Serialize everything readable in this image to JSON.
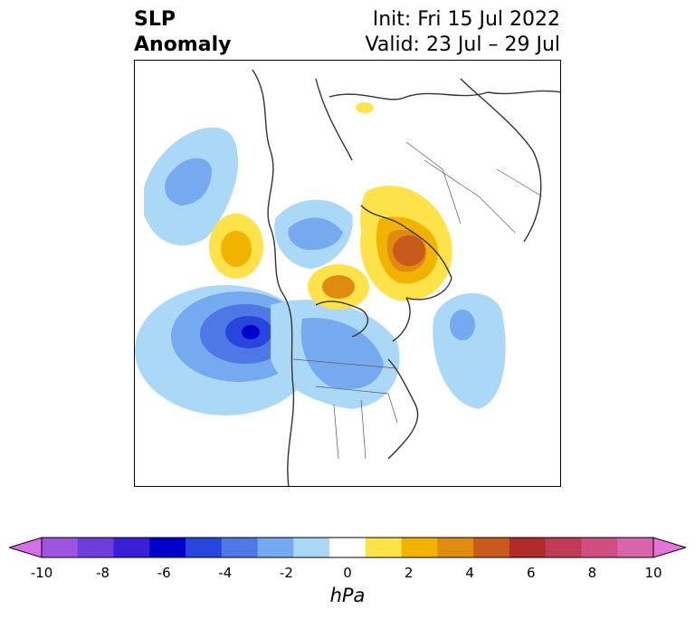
{
  "header": {
    "title_line1": "SLP",
    "title_line2": "Anomaly",
    "init_text": "Init: Fri 15 Jul 2022",
    "valid_text": "Valid: 23 Jul – 29 Jul"
  },
  "colorbar": {
    "units": "hPa",
    "tick_labels": [
      "-10",
      "-8",
      "-6",
      "-4",
      "-2",
      "0",
      "2",
      "4",
      "6",
      "8",
      "10"
    ],
    "colors": [
      "#d66ee6",
      "#9d55e0",
      "#6e3fd8",
      "#3a1fd6",
      "#0000cc",
      "#2845dd",
      "#4d78e6",
      "#75aaf0",
      "#acd8f8",
      "#ffffff",
      "#fde24a",
      "#f2b200",
      "#de8b10",
      "#c85a1c",
      "#b12b2b",
      "#c23b56",
      "#cf5080",
      "#d864aa",
      "#e673d8"
    ]
  },
  "map": {
    "projection": "north-polar-stereographic",
    "features": [
      "coastlines-icon",
      "country-borders",
      "us-state-borders",
      "slp-anomaly-contours"
    ]
  }
}
